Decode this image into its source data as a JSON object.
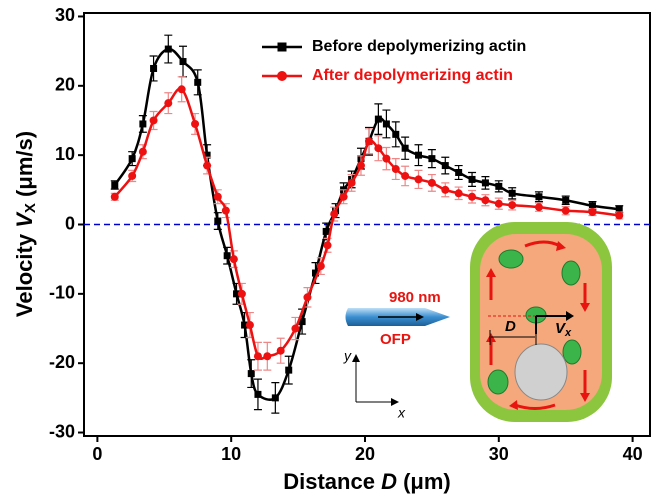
{
  "chart_data": {
    "type": "line",
    "xlabel_parts": [
      "Distance ",
      "D",
      " (μm)"
    ],
    "ylabel_parts": [
      "Velocity ",
      "V",
      "X",
      " (μm/s)"
    ],
    "xlim": [
      -1,
      41.3
    ],
    "ylim": [
      -30.5,
      30.5
    ],
    "xticks": [
      0,
      10,
      20,
      30,
      40
    ],
    "yticks": [
      -30,
      -20,
      -10,
      0,
      10,
      20,
      30
    ],
    "reference_line": {
      "value": 0,
      "color": "#0000cc"
    },
    "legend": "upper right",
    "series": [
      {
        "name": "Before depolymerizing actin",
        "color": "#000000",
        "marker": "square",
        "error_color": "#000000",
        "x": [
          1.3,
          2.6,
          3.4,
          4.2,
          5.3,
          6.4,
          7.5,
          8.2,
          9.0,
          9.7,
          10.4,
          11.0,
          11.5,
          12.0,
          13.3,
          14.3,
          15.3,
          16.3,
          17.1,
          17.8,
          18.4,
          19.0,
          19.7,
          20.3,
          21.0,
          21.6,
          22.3,
          23.0,
          24.0,
          25.0,
          26.0,
          27.0,
          28.0,
          29.0,
          30.0,
          31.0,
          33.0,
          35.0,
          37.0,
          39.0
        ],
        "values": [
          5.7,
          9.5,
          14.5,
          22.5,
          25.3,
          23.5,
          20.5,
          10.0,
          0.5,
          -4.5,
          -10.0,
          -14.5,
          -21.5,
          -24.5,
          -25.0,
          -21.0,
          -14.0,
          -7.0,
          -1.0,
          2.0,
          5.0,
          6.5,
          9.5,
          12.0,
          15.2,
          14.5,
          13.0,
          11.0,
          10.0,
          9.5,
          8.5,
          7.5,
          6.5,
          6.0,
          5.5,
          4.5,
          4.0,
          3.5,
          2.7,
          2.2
        ],
        "errors": [
          0.6,
          1.0,
          1.2,
          1.8,
          2.0,
          2.2,
          1.8,
          1.5,
          1.2,
          1.2,
          1.5,
          1.8,
          2.0,
          2.2,
          2.2,
          2.0,
          1.8,
          1.5,
          1.2,
          1.0,
          1.0,
          1.2,
          1.5,
          2.0,
          2.2,
          2.0,
          1.8,
          1.6,
          1.5,
          1.3,
          1.2,
          1.0,
          1.0,
          0.9,
          0.8,
          0.8,
          0.7,
          0.6,
          0.6,
          0.5
        ]
      },
      {
        "name": "After depolymerizing actin",
        "color": "#ee1111",
        "marker": "circle",
        "error_color": "#ee8888",
        "x": [
          1.3,
          2.6,
          3.4,
          4.2,
          5.3,
          6.3,
          7.3,
          8.2,
          9.0,
          9.6,
          10.2,
          10.8,
          11.4,
          12.0,
          12.7,
          13.7,
          14.8,
          15.7,
          16.7,
          17.2,
          17.7,
          18.4,
          19.0,
          19.7,
          20.3,
          21.0,
          21.6,
          22.3,
          23.0,
          24.0,
          25.0,
          26.0,
          27.0,
          28.0,
          29.0,
          30.0,
          31.0,
          33.0,
          35.0,
          37.0,
          39.0
        ],
        "values": [
          4.0,
          7.0,
          10.5,
          15.0,
          17.5,
          19.5,
          14.5,
          8.5,
          4.0,
          2.0,
          -5.0,
          -10.0,
          -14.5,
          -19.0,
          -19.0,
          -18.2,
          -15.0,
          -10.5,
          -6.0,
          -3.0,
          1.5,
          4.0,
          6.0,
          8.5,
          12.0,
          11.0,
          9.5,
          8.0,
          7.0,
          6.5,
          6.0,
          5.0,
          4.5,
          4.0,
          3.5,
          3.0,
          2.8,
          2.5,
          2.0,
          1.8,
          1.3
        ],
        "errors": [
          0.5,
          0.8,
          1.0,
          1.3,
          1.5,
          1.8,
          1.5,
          1.2,
          1.0,
          1.0,
          1.2,
          1.5,
          1.8,
          2.0,
          2.0,
          1.8,
          1.6,
          1.4,
          1.2,
          1.0,
          1.0,
          1.0,
          1.2,
          1.4,
          1.8,
          1.8,
          1.6,
          1.5,
          1.4,
          1.3,
          1.2,
          1.0,
          0.9,
          0.9,
          0.8,
          0.8,
          0.7,
          0.6,
          0.6,
          0.5,
          0.5
        ]
      }
    ],
    "inset": {
      "laser": "980 nm",
      "fiber": "OFP",
      "distance": "D",
      "velocity_parts": [
        "V",
        "x"
      ],
      "axis_y": "y",
      "axis_x": "x"
    }
  }
}
